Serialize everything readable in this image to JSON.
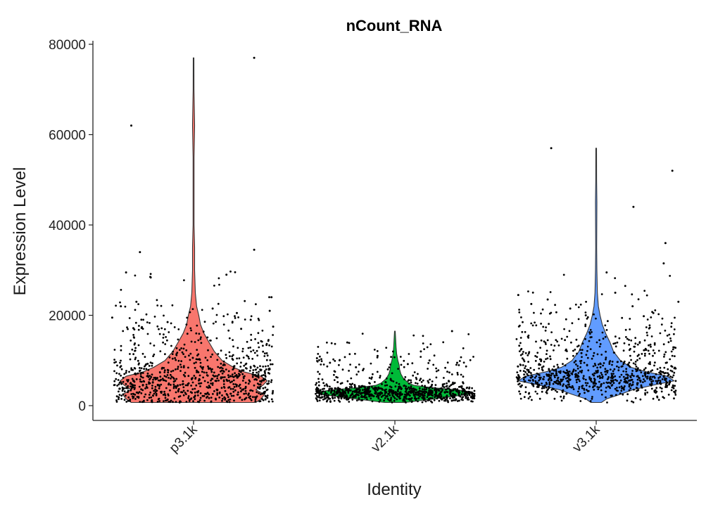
{
  "chart_data": {
    "type": "violin",
    "title": "nCount_RNA",
    "xlabel": "Identity",
    "ylabel": "Expression Level",
    "ylim": [
      -3000,
      80000
    ],
    "yticks": [
      0,
      20000,
      40000,
      60000,
      80000
    ],
    "ytick_labels": [
      "0",
      "20000",
      "40000",
      "60000",
      "80000"
    ],
    "categories": [
      "p3.1k",
      "v2.1k",
      "v3.1k"
    ],
    "grid": false,
    "legend": "none",
    "series": [
      {
        "category": "p3.1k",
        "color": "#F8766D",
        "min": 700,
        "max": 77000,
        "profile": [
          [
            700,
            0.72
          ],
          [
            1500,
            0.78
          ],
          [
            2500,
            0.82
          ],
          [
            3500,
            0.72
          ],
          [
            4500,
            0.8
          ],
          [
            5500,
            0.85
          ],
          [
            6500,
            0.78
          ],
          [
            7500,
            0.58
          ],
          [
            8500,
            0.46
          ],
          [
            10000,
            0.33
          ],
          [
            12000,
            0.24
          ],
          [
            14000,
            0.18
          ],
          [
            16000,
            0.12
          ],
          [
            18000,
            0.08
          ],
          [
            20000,
            0.06
          ],
          [
            22000,
            0.035
          ],
          [
            25000,
            0.02
          ],
          [
            30000,
            0.012
          ],
          [
            35000,
            0.012
          ],
          [
            40000,
            0.006
          ],
          [
            55000,
            0.006
          ],
          [
            62000,
            0.012
          ],
          [
            70000,
            0.005
          ],
          [
            77000,
            0.004
          ]
        ],
        "outliers": [
          [
            0.7,
            77000
          ],
          [
            -0.72,
            62000
          ],
          [
            -0.62,
            34000
          ],
          [
            0.7,
            34500
          ],
          [
            0.38,
            29000
          ],
          [
            -0.78,
            29500
          ],
          [
            -0.5,
            28500
          ],
          [
            -0.84,
            22000
          ],
          [
            0.9,
            24000
          ],
          [
            -0.66,
            23000
          ],
          [
            0.22,
            21500
          ],
          [
            0.88,
            21000
          ],
          [
            0.5,
            20500
          ],
          [
            -0.94,
            19500
          ],
          [
            0.66,
            19000
          ],
          [
            -0.3,
            18500
          ],
          [
            0.92,
            17500
          ],
          [
            0.55,
            17000
          ],
          [
            -0.6,
            17200
          ]
        ]
      },
      {
        "category": "v2.1k",
        "color": "#00BA38",
        "min": 700,
        "max": 16500,
        "profile": [
          [
            700,
            0.12
          ],
          [
            1500,
            0.45
          ],
          [
            2500,
            0.85
          ],
          [
            3000,
            0.9
          ],
          [
            3500,
            0.72
          ],
          [
            4000,
            0.42
          ],
          [
            4500,
            0.22
          ],
          [
            5000,
            0.16
          ],
          [
            6000,
            0.1
          ],
          [
            7000,
            0.07
          ],
          [
            8000,
            0.055
          ],
          [
            9000,
            0.05
          ],
          [
            10000,
            0.035
          ],
          [
            11500,
            0.02
          ],
          [
            13000,
            0.014
          ],
          [
            14500,
            0.01
          ],
          [
            16500,
            0.004
          ]
        ],
        "outliers": [
          [
            -0.55,
            14000
          ],
          [
            0.66,
            16500
          ],
          [
            -0.2,
            11000
          ],
          [
            0.3,
            12000
          ],
          [
            -0.75,
            9500
          ],
          [
            0.72,
            9500
          ],
          [
            -0.45,
            8500
          ],
          [
            0.4,
            10000
          ],
          [
            0.15,
            9200
          ],
          [
            -0.9,
            10500
          ]
        ]
      },
      {
        "category": "v3.1k",
        "color": "#619CFF",
        "min": 700,
        "max": 57000,
        "profile": [
          [
            700,
            0.06
          ],
          [
            1500,
            0.12
          ],
          [
            2500,
            0.28
          ],
          [
            3500,
            0.42
          ],
          [
            4500,
            0.65
          ],
          [
            5500,
            0.9
          ],
          [
            6500,
            0.82
          ],
          [
            7500,
            0.58
          ],
          [
            8500,
            0.4
          ],
          [
            10000,
            0.28
          ],
          [
            12000,
            0.2
          ],
          [
            14000,
            0.16
          ],
          [
            16000,
            0.11
          ],
          [
            18000,
            0.07
          ],
          [
            20000,
            0.045
          ],
          [
            22000,
            0.025
          ],
          [
            25000,
            0.014
          ],
          [
            30000,
            0.008
          ],
          [
            35000,
            0.006
          ],
          [
            45000,
            0.008
          ],
          [
            50000,
            0.005
          ],
          [
            57000,
            0.004
          ]
        ],
        "outliers": [
          [
            -0.52,
            57000
          ],
          [
            0.88,
            52000
          ],
          [
            0.43,
            44000
          ],
          [
            0.8,
            36000
          ],
          [
            0.78,
            31500
          ],
          [
            0.12,
            29500
          ],
          [
            0.22,
            25000
          ],
          [
            -0.9,
            24500
          ],
          [
            -0.56,
            23500
          ],
          [
            0.42,
            22000
          ],
          [
            -0.3,
            21500
          ],
          [
            0.95,
            23000
          ],
          [
            -0.75,
            22500
          ],
          [
            0.66,
            20500
          ],
          [
            -0.12,
            20000
          ],
          [
            0.55,
            19800
          ]
        ]
      }
    ]
  }
}
